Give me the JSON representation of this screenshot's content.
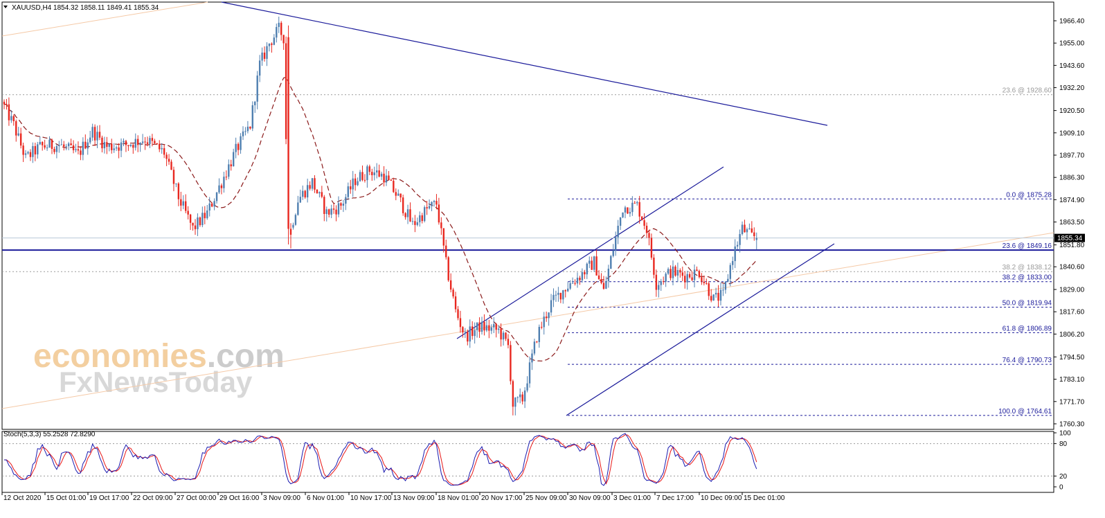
{
  "header": {
    "symbol_line": "XAUUSD,H4  1854.32 1858.11 1849.41 1855.34",
    "dropdown_icon": "triangle-down-icon",
    "stoch_label": "Stoch(5,3,3) 55.2528 72.8290"
  },
  "watermark": {
    "line1_a": "economies",
    "line1_b": ".com",
    "line2": "FxNewsToday"
  },
  "colors": {
    "bull": "#4f7fb0",
    "bear": "#e8271f",
    "ma": "#8b1a1a",
    "trend": "#1a1a9a",
    "fib": "#1a1a9a",
    "fib_gray": "#9a9a9a",
    "orange_line": "#f5c9a6",
    "stoch_main": "#1a1ab0",
    "stoch_signal": "#e81515",
    "price_tag": "#000000"
  },
  "price_axis": {
    "labels": [
      "1966.40",
      "1955.00",
      "1943.60",
      "1932.20",
      "1920.50",
      "1909.10",
      "1897.70",
      "1886.30",
      "1874.90",
      "1863.50",
      "1851.80",
      "1840.60",
      "1829.00",
      "1817.60",
      "1806.20",
      "1794.50",
      "1783.10",
      "1771.70",
      "1760.30"
    ],
    "values": [
      1966.4,
      1955.0,
      1943.6,
      1932.2,
      1920.5,
      1909.1,
      1897.7,
      1886.3,
      1874.9,
      1863.5,
      1851.8,
      1840.6,
      1829.0,
      1817.6,
      1806.2,
      1794.5,
      1783.1,
      1771.7,
      1760.3
    ],
    "current_price": "1855.34"
  },
  "stoch_axis": {
    "labels": [
      "100",
      "80",
      "20",
      "0"
    ],
    "values": [
      100,
      80,
      20,
      0
    ]
  },
  "time_axis": [
    "12 Oct 2020",
    "15 Oct 01:00",
    "19 Oct 17:00",
    "22 Oct 09:00",
    "27 Oct 00:00",
    "29 Oct 16:00",
    "3 Nov 09:00",
    "6 Nov 01:00",
    "10 Nov 17:00",
    "13 Nov 09:00",
    "18 Nov 01:00",
    "20 Nov 17:00",
    "25 Nov 09:00",
    "30 Nov 09:00",
    "3 Dec 01:00",
    "7 Dec 17:00",
    "10 Dec 09:00",
    "15 Dec 01:00"
  ],
  "fib_levels": [
    {
      "label": "23.6 @ 1928.60",
      "value": 1928.6,
      "style": "gray"
    },
    {
      "label": "0.0 @ 1875.28",
      "value": 1875.28,
      "style": "blue"
    },
    {
      "label": "23.6 @ 1849.16",
      "value": 1849.16,
      "style": "blue"
    },
    {
      "label": "38.2 @ 1838.12",
      "value": 1838.12,
      "style": "gray"
    },
    {
      "label": "38.2 @ 1833.00",
      "value": 1833.0,
      "style": "blue"
    },
    {
      "label": "50.0 @ 1819.94",
      "value": 1819.94,
      "style": "blue"
    },
    {
      "label": "61.8 @ 1806.89",
      "value": 1806.89,
      "style": "blue"
    },
    {
      "label": "76.4 @ 1790.73",
      "value": 1790.73,
      "style": "blue"
    },
    {
      "label": "100.0 @ 1764.61",
      "value": 1764.61,
      "style": "blue"
    }
  ],
  "chart_data": {
    "type": "candlestick",
    "symbol": "XAUUSD",
    "timeframe": "H4",
    "ohlc_last": {
      "open": 1854.32,
      "high": 1858.11,
      "low": 1849.41,
      "close": 1855.34
    },
    "x_labels": [
      "12 Oct 2020",
      "15 Oct 01:00",
      "19 Oct 17:00",
      "22 Oct 09:00",
      "27 Oct 00:00",
      "29 Oct 16:00",
      "3 Nov 09:00",
      "6 Nov 01:00",
      "10 Nov 17:00",
      "13 Nov 09:00",
      "18 Nov 01:00",
      "20 Nov 17:00",
      "25 Nov 09:00",
      "30 Nov 09:00",
      "3 Dec 01:00",
      "7 Dec 17:00",
      "10 Dec 09:00",
      "15 Dec 01:00"
    ],
    "ylim": [
      1760.3,
      1966.4
    ],
    "price_keypoints": [
      [
        0,
        1925
      ],
      [
        5,
        1913
      ],
      [
        10,
        1896
      ],
      [
        16,
        1902
      ],
      [
        24,
        1903
      ],
      [
        32,
        1898
      ],
      [
        38,
        1910
      ],
      [
        44,
        1902
      ],
      [
        52,
        1903
      ],
      [
        60,
        1906
      ],
      [
        68,
        1899
      ],
      [
        74,
        1876
      ],
      [
        80,
        1860
      ],
      [
        86,
        1868
      ],
      [
        92,
        1884
      ],
      [
        98,
        1900
      ],
      [
        104,
        1913
      ],
      [
        108,
        1944
      ],
      [
        112,
        1955
      ],
      [
        116,
        1962
      ],
      [
        118,
        1958
      ],
      [
        120,
        1855
      ],
      [
        124,
        1875
      ],
      [
        130,
        1884
      ],
      [
        136,
        1868
      ],
      [
        142,
        1872
      ],
      [
        148,
        1885
      ],
      [
        154,
        1890
      ],
      [
        160,
        1887
      ],
      [
        166,
        1876
      ],
      [
        172,
        1862
      ],
      [
        178,
        1870
      ],
      [
        182,
        1873
      ],
      [
        186,
        1842
      ],
      [
        190,
        1818
      ],
      [
        194,
        1805
      ],
      [
        200,
        1810
      ],
      [
        208,
        1808
      ],
      [
        212,
        1800
      ],
      [
        214,
        1770
      ],
      [
        218,
        1773
      ],
      [
        224,
        1805
      ],
      [
        230,
        1822
      ],
      [
        236,
        1830
      ],
      [
        242,
        1836
      ],
      [
        248,
        1843
      ],
      [
        252,
        1828
      ],
      [
        256,
        1850
      ],
      [
        260,
        1871
      ],
      [
        266,
        1872
      ],
      [
        270,
        1860
      ],
      [
        274,
        1832
      ],
      [
        280,
        1838
      ],
      [
        286,
        1836
      ],
      [
        292,
        1838
      ],
      [
        298,
        1824
      ],
      [
        302,
        1826
      ],
      [
        306,
        1846
      ],
      [
        310,
        1860
      ],
      [
        314,
        1856
      ]
    ],
    "series": [
      {
        "name": "Stoch(5,3,3)",
        "values_last": [
          55.2528,
          72.829
        ],
        "ylim": [
          0,
          100
        ],
        "levels": [
          80,
          20
        ]
      }
    ]
  }
}
